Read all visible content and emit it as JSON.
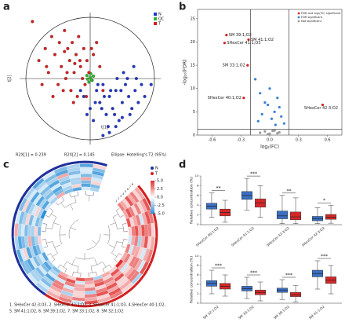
{
  "chart_data": [
    {
      "type": "scatter",
      "label": "a",
      "xlabel": "t[1]",
      "ylabel": "t[2]",
      "xlim": [
        -11,
        11
      ],
      "ylim": [
        -11,
        11
      ],
      "notes": [
        "R2X[1] = 0.239",
        "R2X[2] = 0.145",
        "Ellipse: Hotelling's T2 (95%)"
      ],
      "series": [
        {
          "name": "N",
          "color": "#2236c8",
          "x": [
            1,
            1.5,
            2,
            2.5,
            3,
            3.5,
            4,
            4.5,
            5,
            5.5,
            6,
            6.5,
            7,
            7.5,
            8,
            -1,
            -0.5,
            0,
            0.5,
            1.2,
            2.2,
            3.2,
            4.2,
            5.2,
            6.2,
            7.2,
            8.5,
            2.8,
            3.8,
            4.8,
            5.8,
            1.8,
            0.8,
            -1.5,
            6.8,
            9.5,
            3,
            4,
            5,
            2
          ],
          "values": [
            -2,
            -4,
            -1,
            -6,
            -3,
            -5,
            -2,
            -7,
            -4,
            -1,
            -3,
            -5,
            -2,
            -4,
            -1,
            -3,
            -6,
            -5,
            -7,
            -1,
            -3,
            -2,
            0,
            1,
            -6,
            0,
            -3,
            -8,
            -6,
            -2,
            0,
            -5,
            -4,
            -2,
            2,
            -1,
            -9,
            -8,
            -6.5,
            -9.5
          ]
        },
        {
          "name": "QC",
          "color": "#2fb82f",
          "x": [
            -0.5,
            0,
            0.3,
            -0.2,
            0.5,
            0.1,
            -0.4,
            0.2
          ],
          "values": [
            0.5,
            0.2,
            -0.3,
            -0.6,
            0.4,
            0.8,
            -0.1,
            -0.2
          ]
        },
        {
          "name": "T",
          "color": "#d42020",
          "x": [
            -8,
            -7,
            -6.5,
            -6,
            -5.5,
            -5,
            -4.8,
            -4.5,
            -4,
            -3.8,
            -3.5,
            -3.2,
            -3,
            -2.8,
            -2.5,
            -2.2,
            -2,
            -1.8,
            -1.5,
            -1.2,
            -1,
            -0.8,
            -0.5,
            -0.2,
            0.5,
            1,
            1.5,
            2,
            -7.5,
            -6.8,
            -5.8,
            -4.2,
            -3.6,
            -2.6,
            -1.6,
            -0.6,
            0.2,
            -9,
            -4,
            -2.4
          ],
          "values": [
            3,
            5,
            1,
            7,
            4,
            -1,
            6,
            2,
            8,
            0,
            5,
            3,
            -2,
            6,
            1,
            4,
            -3,
            7,
            2,
            0,
            5,
            -1,
            3,
            1,
            4,
            6,
            2,
            -2,
            -1,
            2,
            -3,
            -2,
            1,
            -4,
            3,
            -3,
            5,
            9.5,
            4.5,
            2.5
          ]
        }
      ]
    },
    {
      "type": "volcano",
      "label": "b",
      "xlabel": "log₂(FC)",
      "ylabel": "-log₁₀(FDR)",
      "xlim": [
        -0.75,
        0.75
      ],
      "ylim": [
        0,
        27
      ],
      "xticks": [
        {
          "value": -0.6,
          "label": "-0.6"
        },
        {
          "value": -0.3,
          "label": "-0.3"
        },
        {
          "value": 0,
          "label": "0.0"
        },
        {
          "value": 0.3,
          "label": "0.3"
        },
        {
          "value": 0.6,
          "label": "0.6"
        }
      ],
      "yticks": [
        0,
        5,
        10,
        15,
        20,
        25
      ],
      "vlines": [
        -0.2,
        0.2
      ],
      "hline": 1.3,
      "series": [
        {
          "name": "FDR and log₂(FC) significant",
          "color": "#d42020",
          "x": [
            -0.45,
            -0.47,
            -0.22,
            -0.23,
            -0.27,
            0.55
          ],
          "values": [
            21.5,
            19.8,
            20.5,
            15,
            8,
            6.5
          ],
          "labels": [
            "SM 39:1;O2",
            "SHexCer 41:1;O3",
            "SM 41:1;O2",
            "SM 33:1;O2",
            "SHexCer 40:1;O2",
            "SHexCer 42:3;O2"
          ]
        },
        {
          "name": "FDR significant",
          "color": "#3a7fd5",
          "x": [
            -0.15,
            -0.1,
            -0.05,
            0,
            0.05,
            0.1,
            0.12,
            -0.12,
            0.02,
            0.08,
            -0.08,
            0.15,
            0.06,
            -0.02
          ],
          "values": [
            12,
            9,
            7,
            10,
            5,
            6,
            4,
            3,
            3.5,
            8,
            4.5,
            2.5,
            2.2,
            6.5
          ]
        },
        {
          "name": "Not significant",
          "color": "#9a9a9a",
          "x": [
            -0.1,
            -0.05,
            0,
            0.05,
            0.1,
            -0.02,
            0.03,
            0.08
          ],
          "values": [
            0.5,
            0.8,
            0.3,
            1,
            0.6,
            0.2,
            0.9,
            0.4
          ]
        }
      ]
    },
    {
      "type": "circular-heatmap",
      "label": "c",
      "rows": [
        "1",
        "2",
        "3",
        "4",
        "5",
        "6",
        "7",
        "8"
      ],
      "legend": [
        {
          "name": "N",
          "color": "#1f2f9a"
        },
        {
          "name": "T",
          "color": "#d42020"
        }
      ],
      "groups": [
        "T",
        "T",
        "T",
        "T",
        "T",
        "T",
        "T",
        "T",
        "T",
        "T",
        "T",
        "T",
        "T",
        "T",
        "T",
        "N",
        "N",
        "N",
        "N",
        "N",
        "N",
        "N",
        "N",
        "N",
        "N",
        "N",
        "N",
        "N",
        "N",
        "N"
      ],
      "clim": [
        -5,
        5
      ],
      "colormap": [
        "#2a8fd6",
        "#ffffff",
        "#e02a2a"
      ],
      "cticks": [
        {
          "value": 5,
          "label": "5.0"
        },
        {
          "value": 2.5,
          "label": "2.5"
        },
        {
          "value": 0,
          "label": "0.0"
        },
        {
          "value": -2.5,
          "label": "-2.5"
        },
        {
          "value": -5,
          "label": "-5.0"
        }
      ],
      "caption": [
        "1. SHexCer 42:3;O3, 2. SHexCer 42:3;O2, 3. SHexCer 41:1;O3, 4.SHexCer 40:1;O2,",
        "5. SM 41:1;O2, 6. SM 39:1;O2, 7. SM 33:1;O2, 8. SM 32:1;O2"
      ],
      "values": [
        [
          3,
          2,
          4,
          1,
          -1,
          3,
          2,
          5,
          1,
          2,
          -2,
          3,
          4,
          1,
          2,
          -3,
          -2,
          -4,
          -1,
          1,
          -3,
          -2,
          -5,
          -1,
          -2,
          2,
          -3,
          -4,
          -1,
          -2
        ],
        [
          2,
          4,
          1,
          3,
          2,
          -1,
          3,
          2,
          4,
          1,
          3,
          2,
          -1,
          4,
          3,
          -2,
          -4,
          -1,
          -3,
          -2,
          1,
          -3,
          -2,
          -4,
          -1,
          -3,
          -2,
          1,
          -4,
          -3
        ],
        [
          1,
          3,
          2,
          4,
          3,
          2,
          1,
          -1,
          2,
          3,
          4,
          1,
          2,
          3,
          -1,
          -1,
          -3,
          -2,
          -4,
          -3,
          -2,
          -1,
          1,
          -2,
          -3,
          -4,
          -1,
          -2,
          -3,
          1
        ],
        [
          4,
          1,
          3,
          2,
          -2,
          2,
          3,
          1,
          4,
          2,
          1,
          3,
          2,
          -1,
          3,
          -4,
          -1,
          -3,
          -2,
          2,
          -2,
          -3,
          -1,
          -4,
          -2,
          -1,
          -3,
          -2,
          2,
          -1
        ],
        [
          2,
          3,
          -1,
          4,
          2,
          1,
          3,
          2,
          1,
          4,
          3,
          -2,
          1,
          2,
          3,
          -2,
          -3,
          -1,
          -4,
          -2,
          -3,
          1,
          -2,
          -1,
          -3,
          -4,
          -2,
          -1,
          -3,
          -2
        ],
        [
          3,
          1,
          2,
          3,
          4,
          -1,
          2,
          3,
          1,
          2,
          4,
          3,
          1,
          -2,
          2,
          -3,
          -2,
          -4,
          1,
          -3,
          -1,
          -2,
          -3,
          -4,
          -1,
          -2,
          2,
          -3,
          -1,
          -4
        ],
        [
          1,
          2,
          4,
          3,
          1,
          2,
          -1,
          3,
          2,
          4,
          1,
          2,
          3,
          2,
          1,
          -1,
          -2,
          -3,
          -1,
          -4,
          -2,
          -3,
          1,
          -1,
          -2,
          -3,
          -4,
          -2,
          -1,
          -3
        ],
        [
          2,
          4,
          3,
          1,
          2,
          3,
          4,
          -2,
          1,
          3,
          2,
          4,
          -1,
          3,
          2,
          -2,
          -1,
          -3,
          -4,
          -2,
          2,
          -1,
          -3,
          -2,
          -4,
          -1,
          -3,
          -2,
          -4,
          1
        ]
      ]
    },
    {
      "type": "box",
      "label": "d",
      "ylabel": "Relative concentration (%)",
      "ylim": [
        0,
        10
      ],
      "yticks": [
        0,
        2,
        4,
        6,
        8,
        10
      ],
      "categories": [
        "SHexCer 40:1;O2",
        "SHexCer 41:1;O3",
        "SHexCer 42:3;O2",
        "SHexCer 42:3;O3"
      ],
      "annotations": [
        "**",
        "***",
        "**",
        "*"
      ],
      "series": [
        {
          "color": "#3a6fc4",
          "values": [
            {
              "min": 1.5,
              "q1": 3.2,
              "median": 3.8,
              "q3": 4.4,
              "max": 6.5
            },
            {
              "min": 3,
              "q1": 5.2,
              "median": 6,
              "q3": 6.8,
              "max": 9.5
            },
            {
              "min": 0.2,
              "q1": 1.2,
              "median": 1.8,
              "q3": 2.8,
              "max": 6
            },
            {
              "min": 0.2,
              "q1": 0.8,
              "median": 1.2,
              "q3": 1.7,
              "max": 3.5
            }
          ]
        },
        {
          "color": "#d62728",
          "values": [
            {
              "min": 0.5,
              "q1": 1.8,
              "median": 2.5,
              "q3": 3.2,
              "max": 5
            },
            {
              "min": 1.5,
              "q1": 3.6,
              "median": 4.5,
              "q3": 5.3,
              "max": 8
            },
            {
              "min": 0.2,
              "q1": 1,
              "median": 1.6,
              "q3": 2.6,
              "max": 5.5
            },
            {
              "min": 0.3,
              "q1": 1.1,
              "median": 1.5,
              "q3": 2.1,
              "max": 4
            }
          ]
        }
      ]
    },
    {
      "type": "box",
      "ylabel": "Relative concentration (%)",
      "ylim": [
        0,
        10
      ],
      "yticks": [
        0,
        2,
        4,
        6,
        8,
        10
      ],
      "categories": [
        "SM 32:1;O2",
        "SM 33:1;O2",
        "SM 39:1;O2",
        "SM 41:1;O2"
      ],
      "annotations": [
        "***",
        "***",
        "***",
        "***"
      ],
      "series": [
        {
          "color": "#3a6fc4",
          "values": [
            {
              "min": 2,
              "q1": 3.6,
              "median": 4.2,
              "q3": 4.8,
              "max": 7
            },
            {
              "min": 1,
              "q1": 2.6,
              "median": 3.1,
              "q3": 3.6,
              "max": 5.5
            },
            {
              "min": 0.8,
              "q1": 2.3,
              "median": 2.8,
              "q3": 3.2,
              "max": 5
            },
            {
              "min": 3,
              "q1": 5.6,
              "median": 6.3,
              "q3": 7,
              "max": 9
            }
          ]
        },
        {
          "color": "#d62728",
          "values": [
            {
              "min": 1.5,
              "q1": 3,
              "median": 3.6,
              "q3": 4.2,
              "max": 6
            },
            {
              "min": 0.5,
              "q1": 1.8,
              "median": 2.3,
              "q3": 2.8,
              "max": 4.5
            },
            {
              "min": 0.3,
              "q1": 1.4,
              "median": 1.8,
              "q3": 2.3,
              "max": 3.8
            },
            {
              "min": 2,
              "q1": 4.2,
              "median": 4.9,
              "q3": 5.6,
              "max": 8
            }
          ]
        }
      ]
    }
  ]
}
